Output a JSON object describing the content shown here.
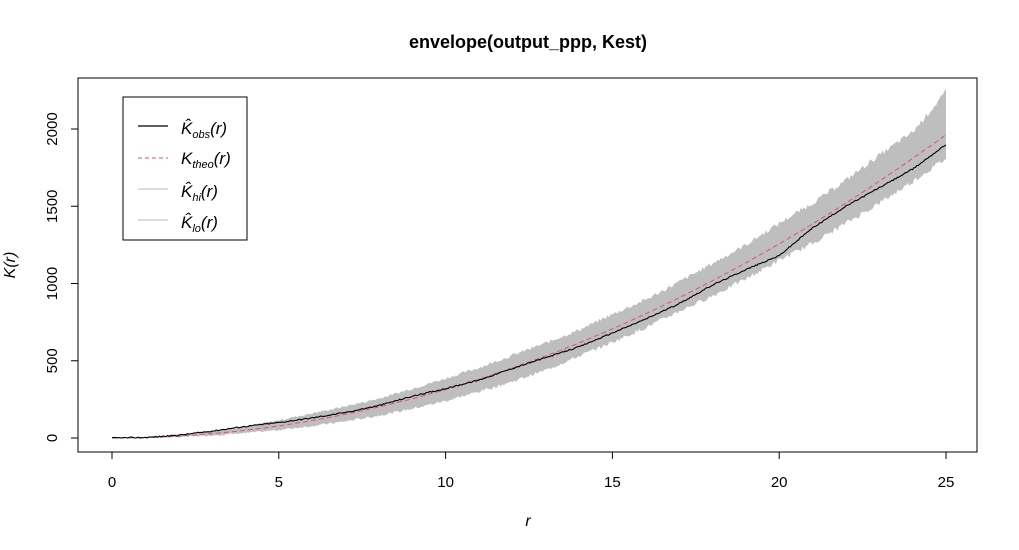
{
  "chart_data": {
    "type": "line",
    "title": "envelope(output_ppp, Kest)",
    "xlabel": "r",
    "ylabel": "K(r)",
    "xlim": [
      0,
      25
    ],
    "ylim": [
      0,
      2150
    ],
    "x_ticks": [
      0,
      5,
      10,
      15,
      20,
      25
    ],
    "y_ticks": [
      0,
      500,
      1000,
      1500,
      2000
    ],
    "grid": false,
    "legend_position": "top-left",
    "x": [
      0,
      1,
      2,
      3,
      4,
      5,
      6,
      7,
      8,
      9,
      10,
      11,
      12,
      13,
      14,
      15,
      16,
      17,
      18,
      19,
      20,
      21,
      22,
      23,
      24,
      25
    ],
    "series": [
      {
        "name": "K̂obs(r)",
        "style": "solid",
        "color": "#000000",
        "values": [
          0,
          3,
          18,
          45,
          75,
          100,
          130,
          165,
          210,
          270,
          320,
          375,
          450,
          520,
          590,
          680,
          770,
          870,
          990,
          1090,
          1180,
          1360,
          1500,
          1620,
          1740,
          1900
        ]
      },
      {
        "name": "Ktheo(r)",
        "style": "dashed",
        "color": "#DF536B",
        "values": [
          0,
          3,
          13,
          28,
          50,
          79,
          113,
          154,
          201,
          254,
          314,
          380,
          452,
          531,
          616,
          707,
          804,
          908,
          1018,
          1134,
          1257,
          1385,
          1521,
          1662,
          1810,
          1963
        ]
      },
      {
        "name": "K̂hi(r)",
        "style": "solid",
        "color": "#bebebe",
        "values": [
          0,
          6,
          22,
          45,
          75,
          115,
          160,
          205,
          255,
          320,
          385,
          455,
          535,
          615,
          700,
          800,
          895,
          1010,
          1130,
          1250,
          1390,
          1520,
          1670,
          1830,
          1980,
          2240
        ]
      },
      {
        "name": "K̂lo(r)",
        "style": "solid",
        "color": "#bebebe",
        "values": [
          0,
          1,
          6,
          17,
          32,
          52,
          78,
          108,
          145,
          190,
          240,
          300,
          365,
          440,
          530,
          620,
          715,
          820,
          920,
          1030,
          1150,
          1260,
          1390,
          1520,
          1660,
          1810
        ]
      }
    ]
  },
  "legend": {
    "obs_main": "K̂",
    "obs_sub": "obs",
    "obs_arg": "(r)",
    "theo_main": "K",
    "theo_sub": "theo",
    "theo_arg": "(r)",
    "hi_main": "K̂",
    "hi_sub": "hi",
    "hi_arg": "(r)",
    "lo_main": "K̂",
    "lo_sub": "lo",
    "lo_arg": "(r)"
  }
}
